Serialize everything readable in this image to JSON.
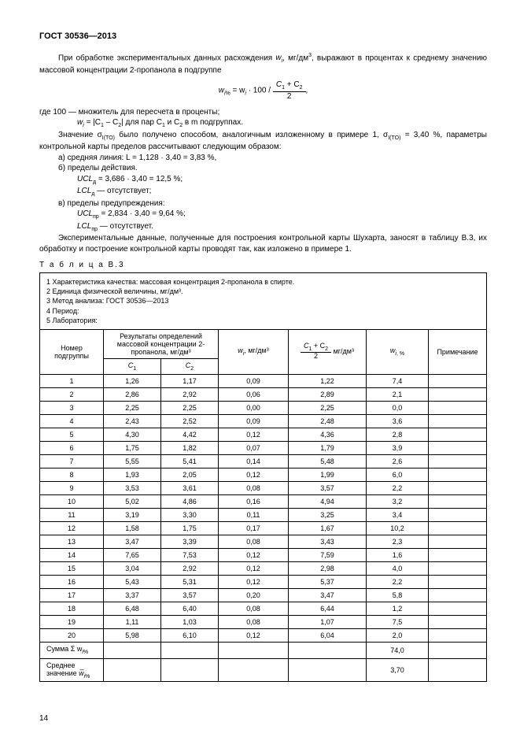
{
  "header": "ГОСТ 30536—2013",
  "p1_a": "При обработке экспериментальных данных расхождения ",
  "p1_b": ", мг/дм",
  "p1_c": ", выражают в процентах к среднему значению массовой концентрации 2-пропанола в подгруппе",
  "formula_lhs": "w",
  "formula_eq": " = w",
  "formula_mid": " · 100 / ",
  "formula_rhs_num": "C",
  "formula_rhs_plus": " + C",
  "formula_rhs_den": "2",
  "formula_comma": ",",
  "line_where_a": "где 100 — множитель для пересчета в проценты;",
  "line_where_b1": "w",
  "line_where_b2": " = |C",
  "line_where_b3": " – C",
  "line_where_b4": "| для пар C",
  "line_where_b5": " и C",
  "line_where_b6": " в m подгруппах.",
  "p2_a": "Значение σ",
  "p2_b": " было получено способом, аналогичным изложенному в примере 1, σ",
  "p2_c": " = 3,40 %, параметры контрольной карты пределов рассчитывают следующим образом:",
  "la": "а) средняя линия: L = 1,128 · 3,40 = 3,83 %,",
  "lb": "б) пределы действия.",
  "lb1": "UCL",
  "lb1v": " = 3,686 · 3,40 = 12,5 %;",
  "lb2": "LCL",
  "lb2v": " — отсутствует;",
  "lc": "в) пределы предупреждения:",
  "lc1": "UCL",
  "lc1v": " = 2,834 · 3,40 = 9,64 %;",
  "lc2": "LCL",
  "lc2v": " — отсутствует.",
  "p3": "Экспериментальные данные, полученные для построения контрольной карты Шухарта, заносят в таблицу В.3, их обработку и построение контрольной карты проводят так, как изложено в примере 1.",
  "table_label": "Т а б л и ц а  В.3",
  "meta1": "1  Характеристика качества: массовая концентрация 2-пропанола в спирте.",
  "meta2": "2  Единица физической величины, мг/дм³.",
  "meta3": "3  Метод анализа: ГОСТ 30536—2013",
  "meta4": "4  Период:",
  "meta5": "5  Лаборатория:",
  "h_num": "Номер подгруппы",
  "h_res": "Результаты определений массовой концентрации 2-пропанола, мг/дм³",
  "h_c1": "C",
  "h_c2": "C",
  "h_w": "w",
  "h_w_unit": ", мг/дм³",
  "h_avg_num1": "C",
  "h_avg_num2": " + C",
  "h_avg_den": "2",
  "h_avg_unit": " мг/дм³",
  "h_wp": "w",
  "h_note": "Примечание",
  "rows": [
    {
      "n": "1",
      "c1": "1,26",
      "c2": "1,17",
      "w": "0,09",
      "avg": "1,22",
      "wp": "7,4"
    },
    {
      "n": "2",
      "c1": "2,86",
      "c2": "2,92",
      "w": "0,06",
      "avg": "2,89",
      "wp": "2,1"
    },
    {
      "n": "3",
      "c1": "2,25",
      "c2": "2,25",
      "w": "0,00",
      "avg": "2,25",
      "wp": "0,0"
    },
    {
      "n": "4",
      "c1": "2,43",
      "c2": "2,52",
      "w": "0,09",
      "avg": "2,48",
      "wp": "3,6"
    },
    {
      "n": "5",
      "c1": "4,30",
      "c2": "4,42",
      "w": "0,12",
      "avg": "4,36",
      "wp": "2,8"
    },
    {
      "n": "6",
      "c1": "1,75",
      "c2": "1,82",
      "w": "0,07",
      "avg": "1,79",
      "wp": "3,9"
    },
    {
      "n": "7",
      "c1": "5,55",
      "c2": "5,41",
      "w": "0,14",
      "avg": "5,48",
      "wp": "2,6"
    },
    {
      "n": "8",
      "c1": "1,93",
      "c2": "2,05",
      "w": "0,12",
      "avg": "1,99",
      "wp": "6,0"
    },
    {
      "n": "9",
      "c1": "3,53",
      "c2": "3,61",
      "w": "0,08",
      "avg": "3,57",
      "wp": "2,2"
    },
    {
      "n": "10",
      "c1": "5,02",
      "c2": "4,86",
      "w": "0,16",
      "avg": "4,94",
      "wp": "3,2"
    },
    {
      "n": "11",
      "c1": "3,19",
      "c2": "3,30",
      "w": "0,11",
      "avg": "3,25",
      "wp": "3,4"
    },
    {
      "n": "12",
      "c1": "1,58",
      "c2": "1,75",
      "w": "0,17",
      "avg": "1,67",
      "wp": "10,2"
    },
    {
      "n": "13",
      "c1": "3,47",
      "c2": "3,39",
      "w": "0,08",
      "avg": "3,43",
      "wp": "2,3"
    },
    {
      "n": "14",
      "c1": "7,65",
      "c2": "7,53",
      "w": "0,12",
      "avg": "7,59",
      "wp": "1,6"
    },
    {
      "n": "15",
      "c1": "3,04",
      "c2": "2,92",
      "w": "0,12",
      "avg": "2,98",
      "wp": "4,0"
    },
    {
      "n": "16",
      "c1": "5,43",
      "c2": "5,31",
      "w": "0,12",
      "avg": "5,37",
      "wp": "2,2"
    },
    {
      "n": "17",
      "c1": "3,37",
      "c2": "3,57",
      "w": "0,20",
      "avg": "3,47",
      "wp": "5,8"
    },
    {
      "n": "18",
      "c1": "6,48",
      "c2": "6,40",
      "w": "0,08",
      "avg": "6,44",
      "wp": "1,2"
    },
    {
      "n": "19",
      "c1": "1,11",
      "c2": "1,03",
      "w": "0,08",
      "avg": "1,07",
      "wp": "7,5"
    },
    {
      "n": "20",
      "c1": "5,98",
      "c2": "6,10",
      "w": "0,12",
      "avg": "6,04",
      "wp": "2,0"
    }
  ],
  "sum_label_a": "Сумма Σ w",
  "sum_val": "74,0",
  "mean_label_a": "Среднее значение ",
  "mean_label_b": "w̅",
  "mean_val": "3,70",
  "page_num": "14"
}
